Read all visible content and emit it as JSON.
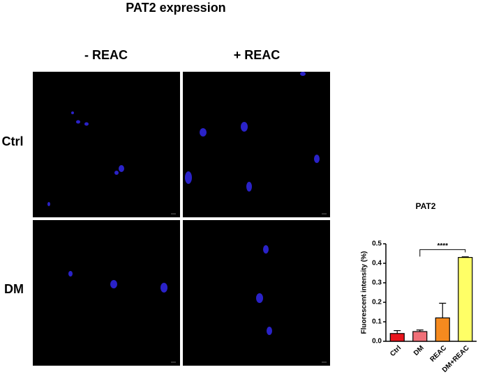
{
  "figure": {
    "title": "PAT2 expression",
    "columns": [
      "- REAC",
      "+ REAC"
    ],
    "rows": [
      "Ctrl",
      "DM"
    ]
  },
  "chart_data": {
    "type": "bar",
    "title": "PAT2",
    "y_label": "Fluorescent intensity (%)",
    "categories": [
      "Ctrl",
      "DM",
      "REAC",
      "DM+REAC"
    ],
    "values": [
      0.04,
      0.05,
      0.12,
      0.43
    ],
    "errors": [
      0.015,
      0.008,
      0.075,
      0.003
    ],
    "colors": [
      "#e8141c",
      "#f07078",
      "#f58a1f",
      "#ffff66"
    ],
    "ylim": [
      0,
      0.5
    ],
    "yticks": [
      {
        "value": 0,
        "label": "0.0"
      },
      0.1,
      0.2,
      0.3,
      0.4,
      0.5
    ],
    "annotations": [
      {
        "text": "****",
        "from": 1,
        "to": 3,
        "y": 0.47
      }
    ]
  }
}
